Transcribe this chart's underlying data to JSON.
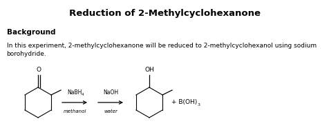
{
  "title": "Reduction of 2-Methylcyclohexanone",
  "section_header": "Background",
  "body_text": "In this experiment, 2-methylcyclohexanone will be reduced to 2-methylcyclohexanol using sodium\nborohydride.",
  "reagent1": "NaBH",
  "reagent1_sub": "4",
  "solvent1": "methanol",
  "reagent2": "NaOH",
  "solvent2": "water",
  "byproduct": "+ B(OH)",
  "byproduct_sub": "3",
  "bg_color": "#ffffff",
  "text_color": "#000000",
  "fig_width": 4.77,
  "fig_height": 1.89,
  "dpi": 100
}
